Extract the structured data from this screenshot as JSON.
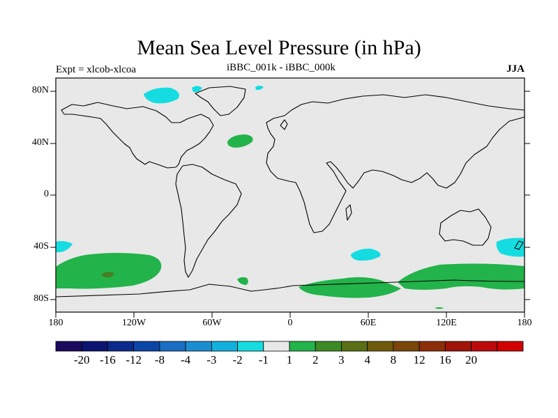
{
  "title": "Mean Sea Level Pressure (in hPa)",
  "left_label": "Expt = xlcob-xlcoa",
  "center_label": "iBBC_001k - iBBC_000k",
  "right_label": "JJA",
  "lat_labels": [
    "80N",
    "40N",
    "0",
    "40S",
    "80S"
  ],
  "lon_labels": [
    "180",
    "120W",
    "60W",
    "0",
    "60E",
    "120E",
    "180"
  ],
  "colorbar": {
    "colors": [
      "#1a0a5e",
      "#0b1470",
      "#0a2a8c",
      "#0a46a8",
      "#1a6ec4",
      "#1a8ed0",
      "#12b0dc",
      "#14dce0",
      "#e8e8e8",
      "#22b34a",
      "#3c8a24",
      "#5a6e14",
      "#6e5a0a",
      "#7a460a",
      "#8c2e08",
      "#a01408",
      "#bc0a0a",
      "#d20000"
    ],
    "labels": [
      "-20",
      "-16",
      "-12",
      "-8",
      "-4",
      "-3",
      "-2",
      "-1",
      "1",
      "2",
      "3",
      "4",
      "8",
      "12",
      "16",
      "20"
    ]
  },
  "map_colors": {
    "background": "#e8e8e8",
    "positive_light": "#22b34a",
    "positive_medium": "#4a7e22",
    "negative_light": "#14dce0"
  }
}
